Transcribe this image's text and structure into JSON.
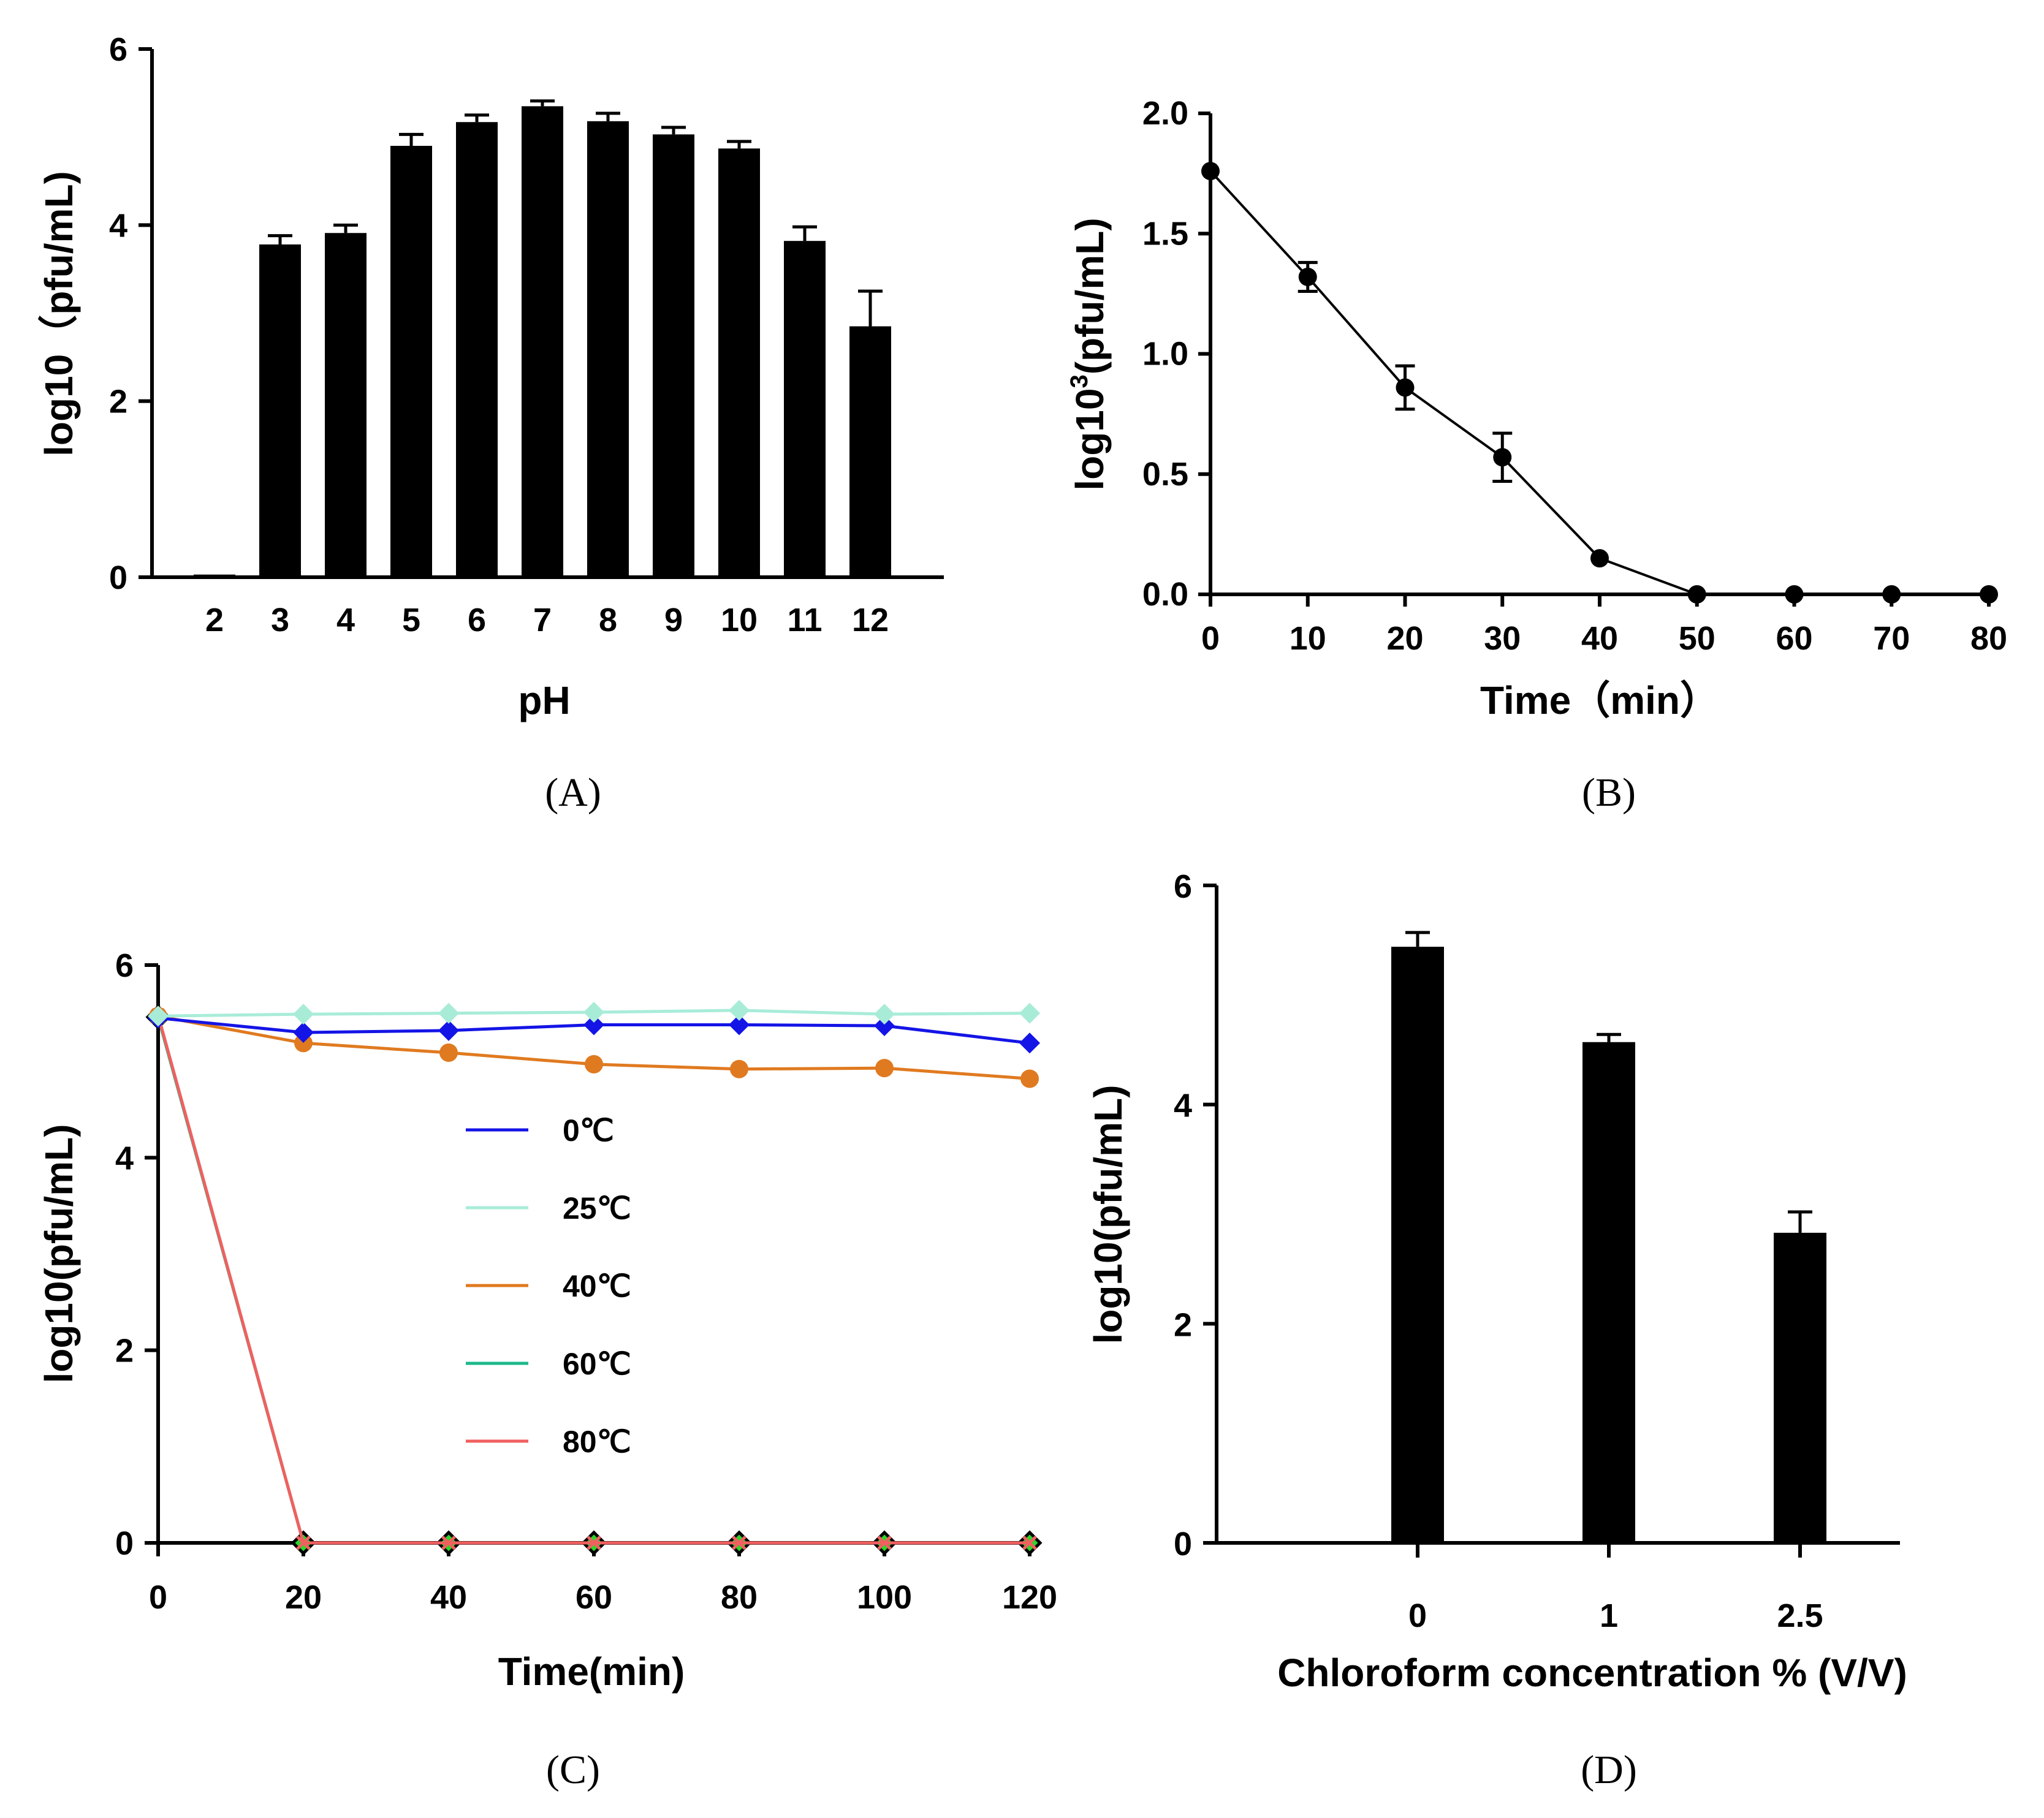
{
  "chart_data": [
    {
      "id": "A",
      "type": "bar",
      "panel_label": "(A)",
      "xlabel": "pH",
      "ylabel": "log10（pfu/mL)",
      "ylim": [
        0,
        6
      ],
      "yticks": [
        "0",
        "2",
        "4",
        "6"
      ],
      "categories": [
        "2",
        "3",
        "4",
        "5",
        "6",
        "7",
        "8",
        "9",
        "10",
        "11",
        "12"
      ],
      "values": [
        0.03,
        3.78,
        3.91,
        4.9,
        5.17,
        5.35,
        5.18,
        5.03,
        4.87,
        3.82,
        2.85
      ],
      "errors": [
        0.0,
        0.1,
        0.09,
        0.13,
        0.08,
        0.06,
        0.09,
        0.08,
        0.08,
        0.16,
        0.4
      ]
    },
    {
      "id": "B",
      "type": "line",
      "panel_label": "(B)",
      "xlabel": "Time（min）",
      "ylabel_main": "log10",
      "ylabel_sup": "3",
      "ylabel_rest": "(pfu/mL)",
      "xlim": [
        0,
        80
      ],
      "ylim": [
        0,
        2
      ],
      "xticks": [
        "0",
        "10",
        "20",
        "30",
        "40",
        "50",
        "60",
        "70",
        "80"
      ],
      "yticks": [
        "0.0",
        "0.5",
        "1.0",
        "1.5",
        "2.0"
      ],
      "x": [
        0,
        10,
        20,
        30,
        40,
        50,
        60,
        70,
        80
      ],
      "y": [
        1.76,
        1.32,
        0.86,
        0.57,
        0.15,
        0.0,
        0.0,
        0.0,
        0.0
      ],
      "errors": [
        0.0,
        0.06,
        0.09,
        0.1,
        0.0,
        0.0,
        0.0,
        0.0,
        0.0
      ]
    },
    {
      "id": "C",
      "type": "line",
      "panel_label": "(C)",
      "xlabel": "Time(min)",
      "ylabel": "log10(pfu/mL)",
      "xlim": [
        0,
        120
      ],
      "ylim": [
        0,
        6
      ],
      "xticks": [
        "0",
        "20",
        "40",
        "60",
        "80",
        "100",
        "120"
      ],
      "yticks": [
        "0",
        "2",
        "4",
        "6"
      ],
      "x": [
        0,
        20,
        40,
        60,
        80,
        100,
        120
      ],
      "series": [
        {
          "name": "0℃",
          "color": "#1414e6",
          "marker": "diamond",
          "values": [
            5.45,
            5.3,
            5.32,
            5.38,
            5.38,
            5.37,
            5.19
          ]
        },
        {
          "name": "25℃",
          "color": "#a8ecd8",
          "marker": "diamond",
          "values": [
            5.47,
            5.49,
            5.5,
            5.51,
            5.53,
            5.49,
            5.5
          ]
        },
        {
          "name": "40℃",
          "color": "#e07a20",
          "marker": "circle",
          "values": [
            5.47,
            5.19,
            5.09,
            4.97,
            4.92,
            4.93,
            4.82
          ]
        },
        {
          "name": "60℃",
          "color": "#1ab888",
          "marker": "diamond-green",
          "values": [
            5.46,
            0.0,
            0.0,
            0.0,
            0.0,
            0.0,
            0.0
          ]
        },
        {
          "name": "80℃",
          "color": "#f06060",
          "marker": "cross",
          "values": [
            5.48,
            0.0,
            0.0,
            0.0,
            0.0,
            0.0,
            0.0
          ]
        }
      ]
    },
    {
      "id": "D",
      "type": "bar",
      "panel_label": "(D)",
      "xlabel": "Chloroform concentration % (V/V)",
      "ylabel": "log10(pfu/mL)",
      "ylim": [
        0,
        6
      ],
      "yticks": [
        "0",
        "2",
        "4",
        "6"
      ],
      "categories": [
        "0",
        "1",
        "2.5"
      ],
      "values": [
        5.44,
        4.57,
        2.83
      ],
      "errors": [
        0.13,
        0.07,
        0.19
      ]
    }
  ]
}
